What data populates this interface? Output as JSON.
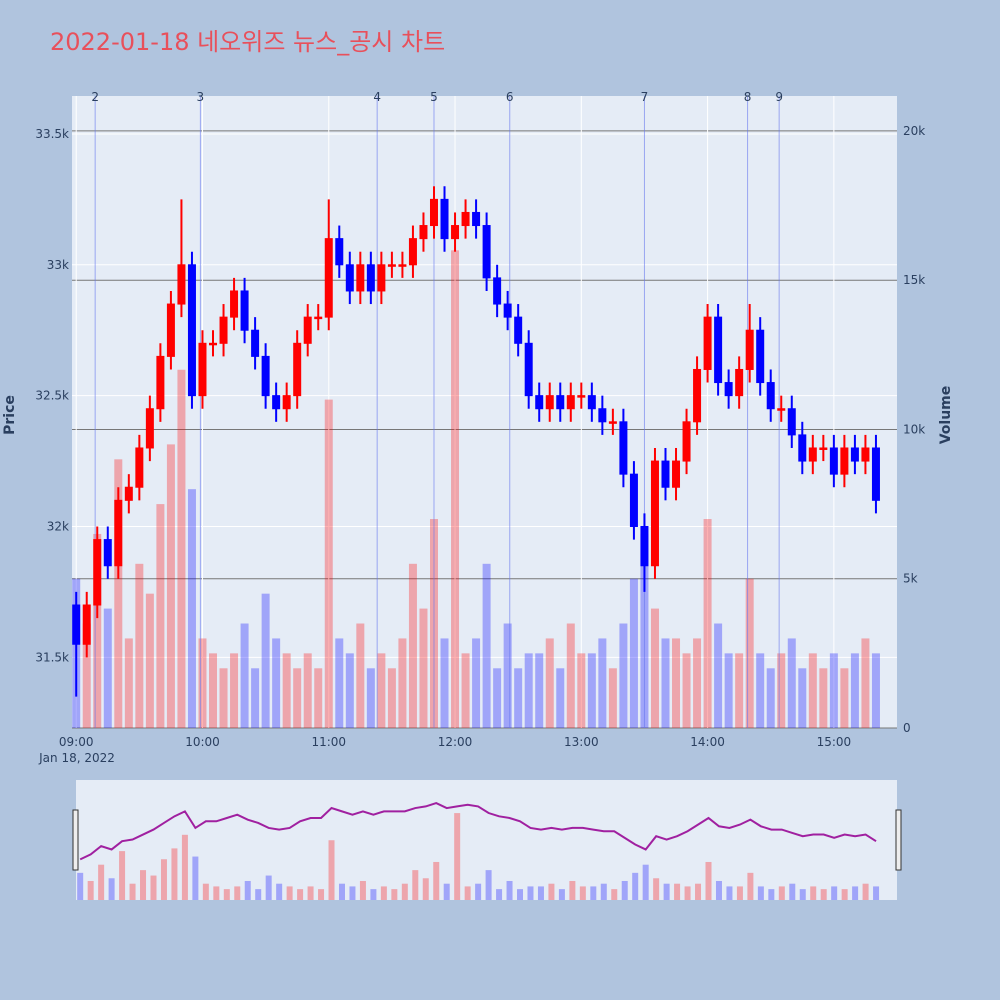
{
  "chart_data": {
    "type": "candlestick",
    "title": "2022-01-18 네오위즈 뉴스_공시 차트",
    "y_label": "Price",
    "y2_label": "Volume",
    "x_date_label": "Jan 18, 2022",
    "increasing_color": "#ff0000",
    "decreasing_color": "#0000ff",
    "x": [
      "09:00",
      "09:05",
      "09:10",
      "09:15",
      "09:20",
      "09:25",
      "09:30",
      "09:35",
      "09:40",
      "09:45",
      "09:50",
      "09:55",
      "10:00",
      "10:05",
      "10:10",
      "10:15",
      "10:20",
      "10:25",
      "10:30",
      "10:35",
      "10:40",
      "10:45",
      "10:50",
      "10:55",
      "11:00",
      "11:05",
      "11:10",
      "11:15",
      "11:20",
      "11:25",
      "11:30",
      "11:35",
      "11:40",
      "11:45",
      "11:50",
      "11:55",
      "12:00",
      "12:05",
      "12:10",
      "12:15",
      "12:20",
      "12:25",
      "12:30",
      "12:35",
      "12:40",
      "12:45",
      "12:50",
      "12:55",
      "13:00",
      "13:05",
      "13:10",
      "13:15",
      "13:20",
      "13:25",
      "13:30",
      "13:35",
      "13:40",
      "13:45",
      "13:50",
      "13:55",
      "14:00",
      "14:05",
      "14:10",
      "14:15",
      "14:20",
      "14:25",
      "14:30",
      "14:35",
      "14:40",
      "14:45",
      "14:50",
      "14:55",
      "15:00",
      "15:05",
      "15:10",
      "15:15",
      "15:20"
    ],
    "open": [
      31700,
      31550,
      31700,
      31950,
      31850,
      32100,
      32150,
      32300,
      32450,
      32650,
      32850,
      33000,
      32500,
      32700,
      32700,
      32800,
      32900,
      32750,
      32650,
      32500,
      32450,
      32500,
      32700,
      32800,
      32800,
      33100,
      33000,
      32900,
      33000,
      32900,
      33000,
      33000,
      33000,
      33100,
      33150,
      33250,
      33100,
      33150,
      33200,
      33150,
      32950,
      32850,
      32800,
      32700,
      32500,
      32450,
      32500,
      32450,
      32500,
      32500,
      32450,
      32400,
      32400,
      32200,
      32000,
      31850,
      32250,
      32150,
      32250,
      32400,
      32600,
      32800,
      32550,
      32500,
      32600,
      32750,
      32550,
      32450,
      32450,
      32350,
      32250,
      32300,
      32300,
      32200,
      32300,
      32250,
      32300
    ],
    "high": [
      31750,
      31750,
      32000,
      32000,
      32150,
      32200,
      32350,
      32500,
      32700,
      32900,
      33250,
      33050,
      32750,
      32750,
      32850,
      32950,
      32950,
      32800,
      32700,
      32550,
      32550,
      32750,
      32850,
      32850,
      33250,
      33150,
      33050,
      33050,
      33050,
      33050,
      33050,
      33050,
      33150,
      33200,
      33300,
      33300,
      33200,
      33250,
      33250,
      33200,
      33000,
      32900,
      32850,
      32750,
      32550,
      32550,
      32550,
      32550,
      32550,
      32550,
      32500,
      32450,
      32450,
      32250,
      32050,
      32300,
      32300,
      32300,
      32450,
      32650,
      32850,
      32850,
      32600,
      32650,
      32850,
      32800,
      32600,
      32500,
      32500,
      32400,
      32350,
      32350,
      32350,
      32350,
      32350,
      32350,
      32350
    ],
    "low": [
      31350,
      31500,
      31650,
      31800,
      31800,
      32050,
      32100,
      32250,
      32400,
      32600,
      32800,
      32450,
      32450,
      32650,
      32650,
      32750,
      32700,
      32600,
      32450,
      32400,
      32400,
      32450,
      32650,
      32750,
      32750,
      32950,
      32850,
      32850,
      32850,
      32850,
      32950,
      32950,
      32950,
      33050,
      33100,
      33050,
      33050,
      33100,
      33100,
      32900,
      32800,
      32750,
      32650,
      32450,
      32400,
      32400,
      32400,
      32400,
      32450,
      32400,
      32350,
      32350,
      32150,
      31950,
      31750,
      31800,
      32100,
      32100,
      32200,
      32350,
      32550,
      32500,
      32450,
      32450,
      32550,
      32500,
      32400,
      32400,
      32300,
      32200,
      32200,
      32250,
      32150,
      32150,
      32200,
      32200,
      32050
    ],
    "close": [
      31550,
      31700,
      31950,
      31850,
      32100,
      32150,
      32300,
      32450,
      32650,
      32850,
      33000,
      32500,
      32700,
      32700,
      32800,
      32900,
      32750,
      32650,
      32500,
      32450,
      32500,
      32700,
      32800,
      32800,
      33100,
      33000,
      32900,
      33000,
      32900,
      33000,
      33000,
      33000,
      33100,
      33150,
      33250,
      33100,
      33150,
      33200,
      33150,
      32950,
      32850,
      32800,
      32700,
      32500,
      32450,
      32500,
      32450,
      32500,
      32500,
      32450,
      32400,
      32400,
      32200,
      32000,
      31850,
      32250,
      32150,
      32250,
      32400,
      32600,
      32800,
      32550,
      32500,
      32600,
      32750,
      32550,
      32450,
      32450,
      32350,
      32250,
      32300,
      32300,
      32200,
      32300,
      32250,
      32300,
      32100
    ],
    "volume": [
      5000,
      3500,
      6500,
      4000,
      9000,
      3000,
      5500,
      4500,
      7500,
      9500,
      12000,
      8000,
      3000,
      2500,
      2000,
      2500,
      3500,
      2000,
      4500,
      3000,
      2500,
      2000,
      2500,
      2000,
      11000,
      3000,
      2500,
      3500,
      2000,
      2500,
      2000,
      3000,
      5500,
      4000,
      7000,
      3000,
      16000,
      2500,
      3000,
      5500,
      2000,
      3500,
      2000,
      2500,
      2500,
      3000,
      2000,
      3500,
      2500,
      2500,
      3000,
      2000,
      3500,
      5000,
      6500,
      4000,
      3000,
      3000,
      2500,
      3000,
      7000,
      3500,
      2500,
      2500,
      5000,
      2500,
      2000,
      2500,
      3000,
      2000,
      2500,
      2000,
      2500,
      2000,
      2500,
      3000,
      2500
    ],
    "xlim": [
      "08:58",
      "15:30"
    ],
    "xticks": [
      "09:00",
      "10:00",
      "11:00",
      "12:00",
      "13:00",
      "14:00",
      "15:00"
    ],
    "ylim": [
      31230,
      33645
    ],
    "yticks": [
      {
        "value": 31500,
        "label": "31.5k"
      },
      {
        "value": 32000,
        "label": "32k"
      },
      {
        "value": 32500,
        "label": "32.5k"
      },
      {
        "value": 33000,
        "label": "33k"
      },
      {
        "value": 33500,
        "label": "33.5k"
      }
    ],
    "y2lim": [
      0,
      21170
    ],
    "y2ticks": [
      0,
      {
        "value": 5000,
        "label": "5k"
      },
      {
        "value": 10000,
        "label": "10k"
      },
      {
        "value": 15000,
        "label": "15k"
      },
      {
        "value": 20000,
        "label": "20k"
      }
    ],
    "news": [
      {
        "label": "2",
        "x": "09:09"
      },
      {
        "label": "3",
        "x": "09:59"
      },
      {
        "label": "4",
        "x": "11:23"
      },
      {
        "label": "5",
        "x": "11:50"
      },
      {
        "label": "6",
        "x": "12:26"
      },
      {
        "label": "7",
        "x": "13:30"
      },
      {
        "label": "8",
        "x": "14:19"
      },
      {
        "label": "9",
        "x": "14:34"
      }
    ]
  }
}
